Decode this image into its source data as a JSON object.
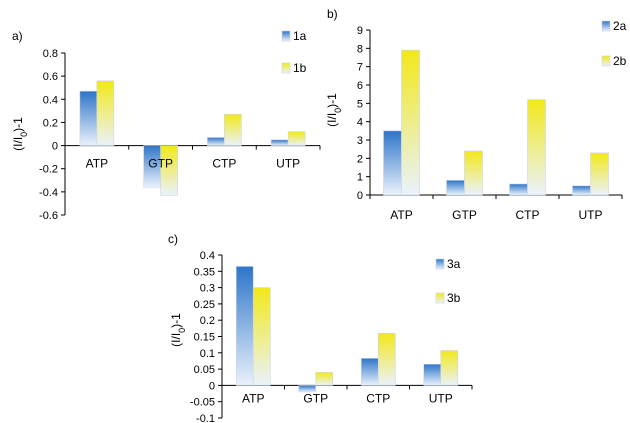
{
  "figure": {
    "colors": {
      "a_top": "#2e75c9",
      "a_bottom": "#eaf2fc",
      "b_top": "#f2e81a",
      "b_bottom": "#eaf2fc",
      "axis": "#000000",
      "tick_text": "#000000"
    }
  },
  "chart_data": [
    {
      "panel_label": "a)",
      "type": "bar",
      "categories": [
        "ATP",
        "GTP",
        "CTP",
        "UTP"
      ],
      "series": [
        {
          "name": "1a",
          "values": [
            0.47,
            -0.36,
            0.07,
            0.05
          ]
        },
        {
          "name": "1b",
          "values": [
            0.56,
            -0.43,
            0.27,
            0.12
          ]
        }
      ],
      "ylabel": "(I/I0)-1",
      "ylim": [
        -0.6,
        0.8
      ],
      "yticks": [
        0.8,
        0.6,
        0.4,
        0.2,
        0,
        -0.2,
        -0.4,
        -0.6
      ],
      "ytick_labels": [
        "0.8",
        "0.6",
        "0.4",
        "0.2",
        "0",
        "-0.2",
        "-0.4",
        "-0.6"
      ],
      "grid": false,
      "legend": "top-right"
    },
    {
      "panel_label": "b)",
      "type": "bar",
      "categories": [
        "ATP",
        "GTP",
        "CTP",
        "UTP"
      ],
      "series": [
        {
          "name": "2a",
          "values": [
            3.5,
            0.8,
            0.6,
            0.5
          ]
        },
        {
          "name": "2b",
          "values": [
            7.9,
            2.4,
            5.2,
            2.3
          ]
        }
      ],
      "ylabel": "(I/I0)-1",
      "ylim": [
        0,
        9
      ],
      "yticks": [
        9,
        8,
        7,
        6,
        5,
        4,
        3,
        2,
        1,
        0
      ],
      "ytick_labels": [
        "9",
        "8",
        "7",
        "6",
        "5",
        "4",
        "3",
        "2",
        "1",
        "0"
      ],
      "grid": false,
      "legend": "top-right"
    },
    {
      "panel_label": "c)",
      "type": "bar",
      "categories": [
        "ATP",
        "GTP",
        "CTP",
        "UTP"
      ],
      "series": [
        {
          "name": "3a",
          "values": [
            0.365,
            -0.02,
            0.083,
            0.065
          ]
        },
        {
          "name": "3b",
          "values": [
            0.3,
            0.04,
            0.16,
            0.107
          ]
        }
      ],
      "ylabel": "(I/I0)-1",
      "ylim": [
        -0.1,
        0.4
      ],
      "yticks": [
        0.4,
        0.35,
        0.3,
        0.25,
        0.2,
        0.15,
        0.1,
        0.05,
        0,
        -0.05,
        -0.1
      ],
      "ytick_labels": [
        "0.4",
        "0.35",
        "0.3",
        "0.25",
        "0.2",
        "0.15",
        "0.1",
        "0.05",
        "0",
        "-0.05",
        "-0.1"
      ],
      "grid": false,
      "legend": "top-right"
    }
  ]
}
